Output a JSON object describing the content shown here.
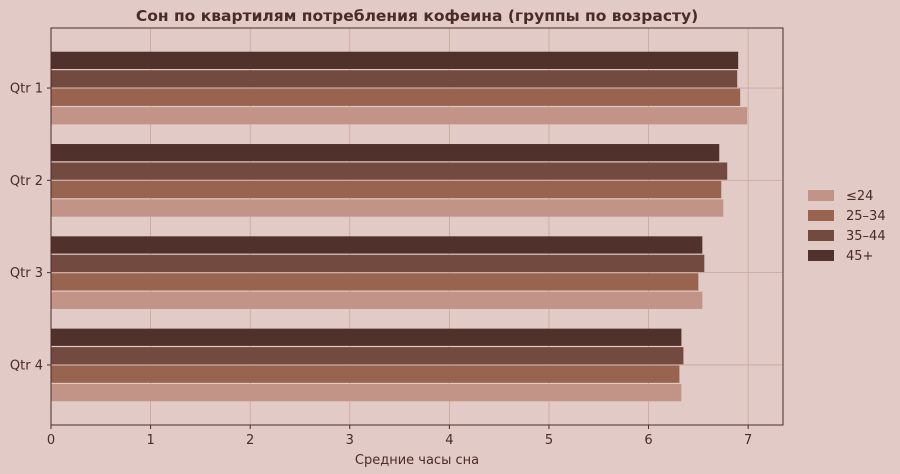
{
  "chart_data": {
    "type": "bar",
    "orientation": "horizontal",
    "title": "Сон по квартилям потребления кофеина (группы по возрасту)",
    "xlabel": "Средние часы сна",
    "ylabel": "",
    "categories": [
      "Qtr 1",
      "Qtr 2",
      "Qtr 3",
      "Qtr 4"
    ],
    "x_ticks": [
      0,
      1,
      2,
      3,
      4,
      5,
      6,
      7
    ],
    "xlim": [
      0,
      7.35
    ],
    "grid": true,
    "legend_position": "right",
    "series": [
      {
        "name": "≤24",
        "color": "#c29387",
        "values": [
          6.99,
          6.75,
          6.54,
          6.33
        ]
      },
      {
        "name": "25–34",
        "color": "#98634f",
        "values": [
          6.92,
          6.73,
          6.5,
          6.31
        ]
      },
      {
        "name": "35–44",
        "color": "#734a3f",
        "values": [
          6.89,
          6.79,
          6.56,
          6.35
        ]
      },
      {
        "name": "45+",
        "color": "#51312b",
        "values": [
          6.9,
          6.71,
          6.54,
          6.33
        ]
      }
    ]
  },
  "colors": {
    "background": "#e2cbc6",
    "plot_border": "#4a2b26",
    "grid": "#c8a79b",
    "text": "#4a2b26"
  }
}
